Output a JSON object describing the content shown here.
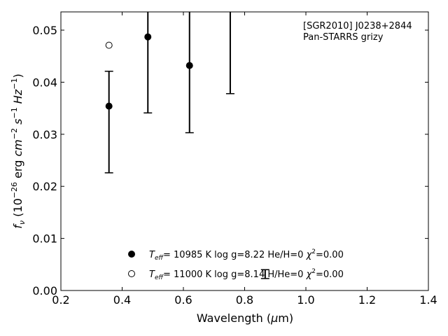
{
  "chart_data": {
    "type": "scatter",
    "annotation": {
      "line1": "[SGR2010] J0238+2844",
      "line2": "Pan-STARRS grizy"
    },
    "xlabel": {
      "main": "Wavelength (",
      "mu": "μ",
      "unit": "m)"
    },
    "ylabel": {
      "f": "f",
      "nu": "ν",
      "rest1": " (10",
      "exp1": "−26",
      "rest2": " erg ",
      "cm": "cm",
      "exp2": "−2",
      "s": " s",
      "exp3": "−1",
      "hz": " Hz",
      "exp4": "−1",
      "close": ")"
    },
    "xlim": [
      0.2,
      1.4
    ],
    "ylim": [
      0.0,
      0.0535
    ],
    "xticks": [
      "0.2",
      "0.4",
      "0.6",
      "0.8",
      "1.0",
      "1.2",
      "1.4"
    ],
    "xtick_values": [
      0.2,
      0.4,
      0.6,
      0.8,
      1.0,
      1.2,
      1.4
    ],
    "yticks": [
      "0.00",
      "0.01",
      "0.02",
      "0.03",
      "0.04",
      "0.05"
    ],
    "ytick_values": [
      0.0,
      0.01,
      0.02,
      0.03,
      0.04,
      0.05
    ],
    "grid": false,
    "legend_position": "lower-center",
    "observed": [
      {
        "x": 0.357,
        "y_low": 0.0226,
        "y_high": 0.0421
      },
      {
        "x": 0.484,
        "y_low": 0.0341,
        "y_high": 0.0535
      },
      {
        "x": 0.62,
        "y_low": 0.0303,
        "y_high": 0.0535
      },
      {
        "x": 0.753,
        "y_low": 0.0378,
        "y_high": 0.0535
      },
      {
        "x": 0.867,
        "y_low": 0.0023,
        "y_high": 0.004
      }
    ],
    "series": [
      {
        "marker": "filled",
        "legend": {
          "teff_sub": "eff",
          "text": "= 10985 K  log g=8.22  He/H=0  ",
          "chi": "χ",
          "chi_exp": "2",
          "chi_val": "=0.00"
        },
        "points": [
          {
            "x": 0.357,
            "y": 0.0354
          },
          {
            "x": 0.484,
            "y": 0.0487
          },
          {
            "x": 0.62,
            "y": 0.0432
          }
        ]
      },
      {
        "marker": "open",
        "legend": {
          "teff_sub": "eff",
          "text": "= 11000 K  log g=8.14  H/He=0  ",
          "chi": "χ",
          "chi_exp": "2",
          "chi_val": "=0.00"
        },
        "points": [
          {
            "x": 0.357,
            "y": 0.0471
          }
        ]
      }
    ]
  }
}
